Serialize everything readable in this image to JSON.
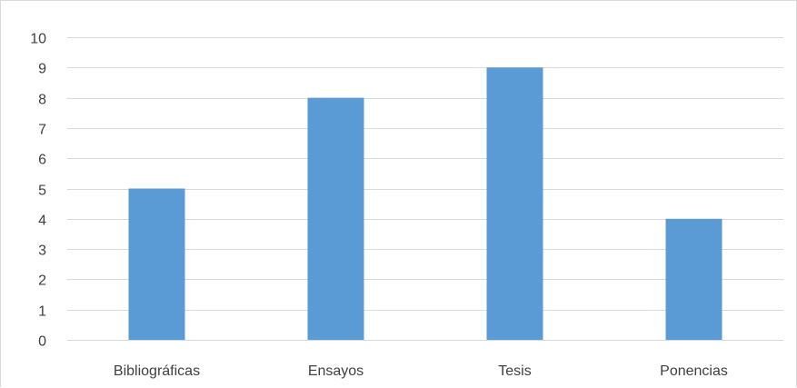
{
  "chart_data": {
    "type": "bar",
    "categories": [
      "Bibliográficas",
      "Ensayos",
      "Tesis",
      "Ponencias"
    ],
    "values": [
      5,
      8,
      9,
      4
    ],
    "title": "",
    "xlabel": "",
    "ylabel": "",
    "ylim": [
      0,
      10
    ],
    "yticks": [
      "0",
      "1",
      "2",
      "3",
      "4",
      "5",
      "6",
      "7",
      "8",
      "9",
      "10"
    ],
    "grid": true,
    "legend": "none",
    "colors": {
      "bar": "#5b9bd5",
      "grid": "#d9d9d9",
      "text": "#404040"
    }
  }
}
